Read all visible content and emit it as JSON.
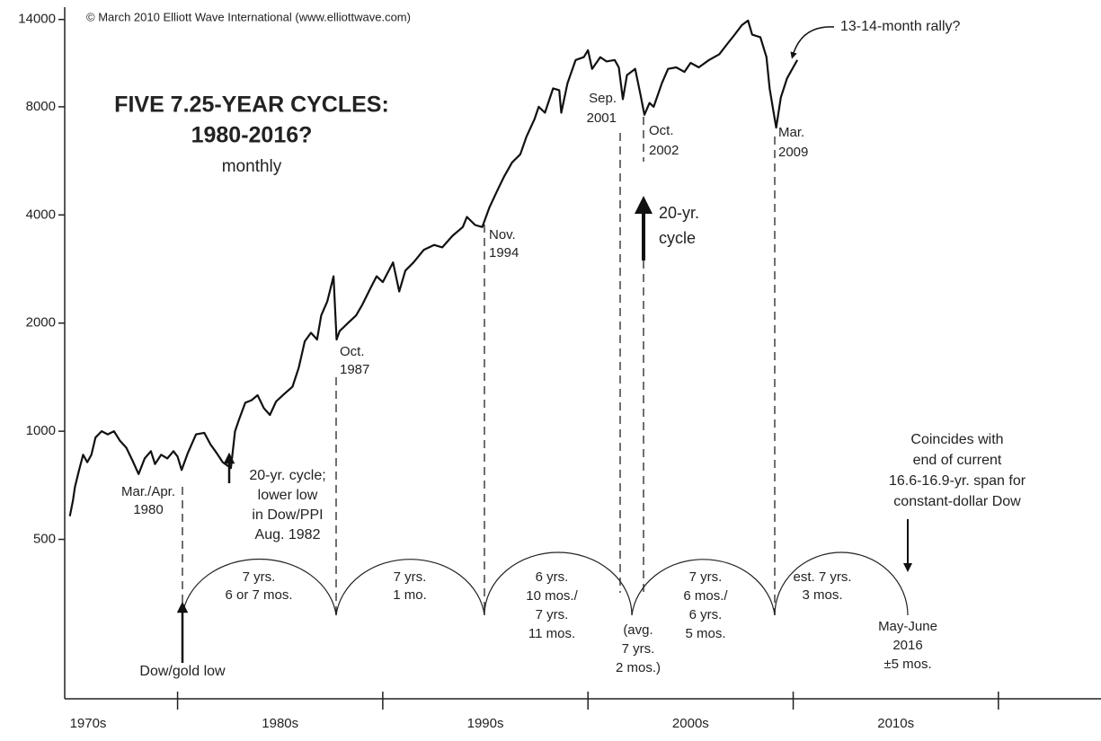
{
  "chart_data": {
    "type": "line",
    "copyright": "© March 2010 Elliott Wave International (www.elliottwave.com)",
    "title_lines": [
      "FIVE 7.25-YEAR CYCLES:",
      "1980-2016?"
    ],
    "subtitle": "monthly",
    "categories": [
      "1970s",
      "1980s",
      "1990s",
      "2000s",
      "2010s"
    ],
    "xlim": [
      1974.5,
      2025
    ],
    "xticks": [
      1980,
      1990,
      2000,
      2010,
      2020
    ],
    "ylim": [
      180,
      14300
    ],
    "yticks": [
      500,
      1000,
      2000,
      4000,
      8000,
      14000
    ],
    "log_scale": true,
    "color": "#111111",
    "x": [
      1974.75,
      1974.9,
      1975.0,
      1975.2,
      1975.4,
      1975.6,
      1975.8,
      1976.0,
      1976.3,
      1976.6,
      1976.9,
      1977.2,
      1977.5,
      1977.8,
      1978.1,
      1978.4,
      1978.7,
      1978.9,
      1979.2,
      1979.5,
      1979.8,
      1980.0,
      1980.2,
      1980.5,
      1980.9,
      1981.3,
      1981.6,
      1981.9,
      1982.2,
      1982.6,
      1982.8,
      1983.0,
      1983.3,
      1983.6,
      1983.9,
      1984.2,
      1984.5,
      1984.8,
      1985.2,
      1985.6,
      1985.9,
      1986.2,
      1986.5,
      1986.8,
      1987.0,
      1987.3,
      1987.6,
      1987.75,
      1987.9,
      1988.3,
      1988.7,
      1989.0,
      1989.4,
      1989.7,
      1990.0,
      1990.5,
      1990.8,
      1991.1,
      1991.5,
      1992.0,
      1992.5,
      1992.9,
      1993.4,
      1993.9,
      1994.1,
      1994.5,
      1994.85,
      1995.2,
      1995.6,
      1995.9,
      1996.3,
      1996.7,
      1997.0,
      1997.4,
      1997.6,
      1997.9,
      1998.3,
      1998.6,
      1998.7,
      1999.0,
      1999.4,
      1999.8,
      2000.0,
      2000.2,
      2000.6,
      2000.9,
      2001.3,
      2001.5,
      2001.7,
      2001.9,
      2002.3,
      2002.55,
      2002.75,
      2003.0,
      2003.2,
      2003.6,
      2003.9,
      2004.3,
      2004.7,
      2005.0,
      2005.4,
      2005.9,
      2006.4,
      2006.8,
      2007.1,
      2007.5,
      2007.8,
      2008.0,
      2008.4,
      2008.7,
      2008.85,
      2009.0,
      2009.17,
      2009.4,
      2009.7,
      2010.0,
      2010.2
    ],
    "values": [
      580,
      640,
      700,
      780,
      860,
      820,
      860,
      960,
      1000,
      980,
      1000,
      940,
      900,
      830,
      760,
      840,
      880,
      810,
      860,
      840,
      880,
      850,
      780,
      870,
      980,
      990,
      920,
      870,
      820,
      790,
      1000,
      1080,
      1200,
      1220,
      1260,
      1160,
      1110,
      1210,
      1270,
      1330,
      1500,
      1780,
      1880,
      1800,
      2100,
      2300,
      2700,
      1800,
      1900,
      2000,
      2100,
      2250,
      2500,
      2700,
      2600,
      2950,
      2450,
      2800,
      2950,
      3200,
      3300,
      3250,
      3500,
      3700,
      3950,
      3750,
      3700,
      4200,
      4700,
      5100,
      5600,
      5900,
      6600,
      7400,
      8000,
      7700,
      9000,
      8900,
      7700,
      9300,
      10800,
      11000,
      11500,
      10200,
      11000,
      10700,
      10800,
      10300,
      8400,
      9800,
      10200,
      8700,
      7600,
      8200,
      8000,
      9300,
      10200,
      10300,
      10000,
      10600,
      10300,
      10800,
      11200,
      12000,
      12600,
      13500,
      13900,
      12700,
      12500,
      11000,
      9000,
      8000,
      7000,
      8500,
      9600,
      10300,
      10800
    ],
    "annotations": [
      {
        "lines": [
          "Mar./Apr.",
          "1980"
        ]
      },
      {
        "lines": [
          "20-yr. cycle;",
          "lower low",
          "in Dow/PPI",
          "Aug. 1982"
        ]
      },
      {
        "lines": [
          "Oct.",
          "1987"
        ]
      },
      {
        "lines": [
          "Nov.",
          "1994"
        ]
      },
      {
        "lines": [
          "Sep.",
          "2001"
        ]
      },
      {
        "lines": [
          "Oct.",
          "2002"
        ]
      },
      {
        "lines": [
          "Mar.",
          "2009"
        ]
      },
      {
        "lines": [
          "20-yr.",
          "cycle"
        ]
      },
      {
        "lines": [
          "13-14-month rally?"
        ]
      },
      {
        "lines": [
          "Coincides with",
          "end of current",
          "16.6-16.9-yr. span for",
          "constant-dollar Dow"
        ]
      },
      {
        "lines": [
          "Dow/gold low"
        ]
      },
      {
        "lines": [
          "7 yrs.",
          "6 or 7 mos."
        ]
      },
      {
        "lines": [
          "7 yrs.",
          "1 mo."
        ]
      },
      {
        "lines": [
          "6 yrs.",
          "10 mos./",
          "7 yrs.",
          "11 mos."
        ]
      },
      {
        "lines": [
          "(avg.",
          "7 yrs.",
          "2 mos.)"
        ]
      },
      {
        "lines": [
          "7 yrs.",
          "6 mos./",
          "6 yrs.",
          "5 mos."
        ]
      },
      {
        "lines": [
          "est. 7 yrs.",
          "3 mos."
        ]
      },
      {
        "lines": [
          "May-June",
          "2016",
          "±5 mos."
        ]
      }
    ]
  }
}
